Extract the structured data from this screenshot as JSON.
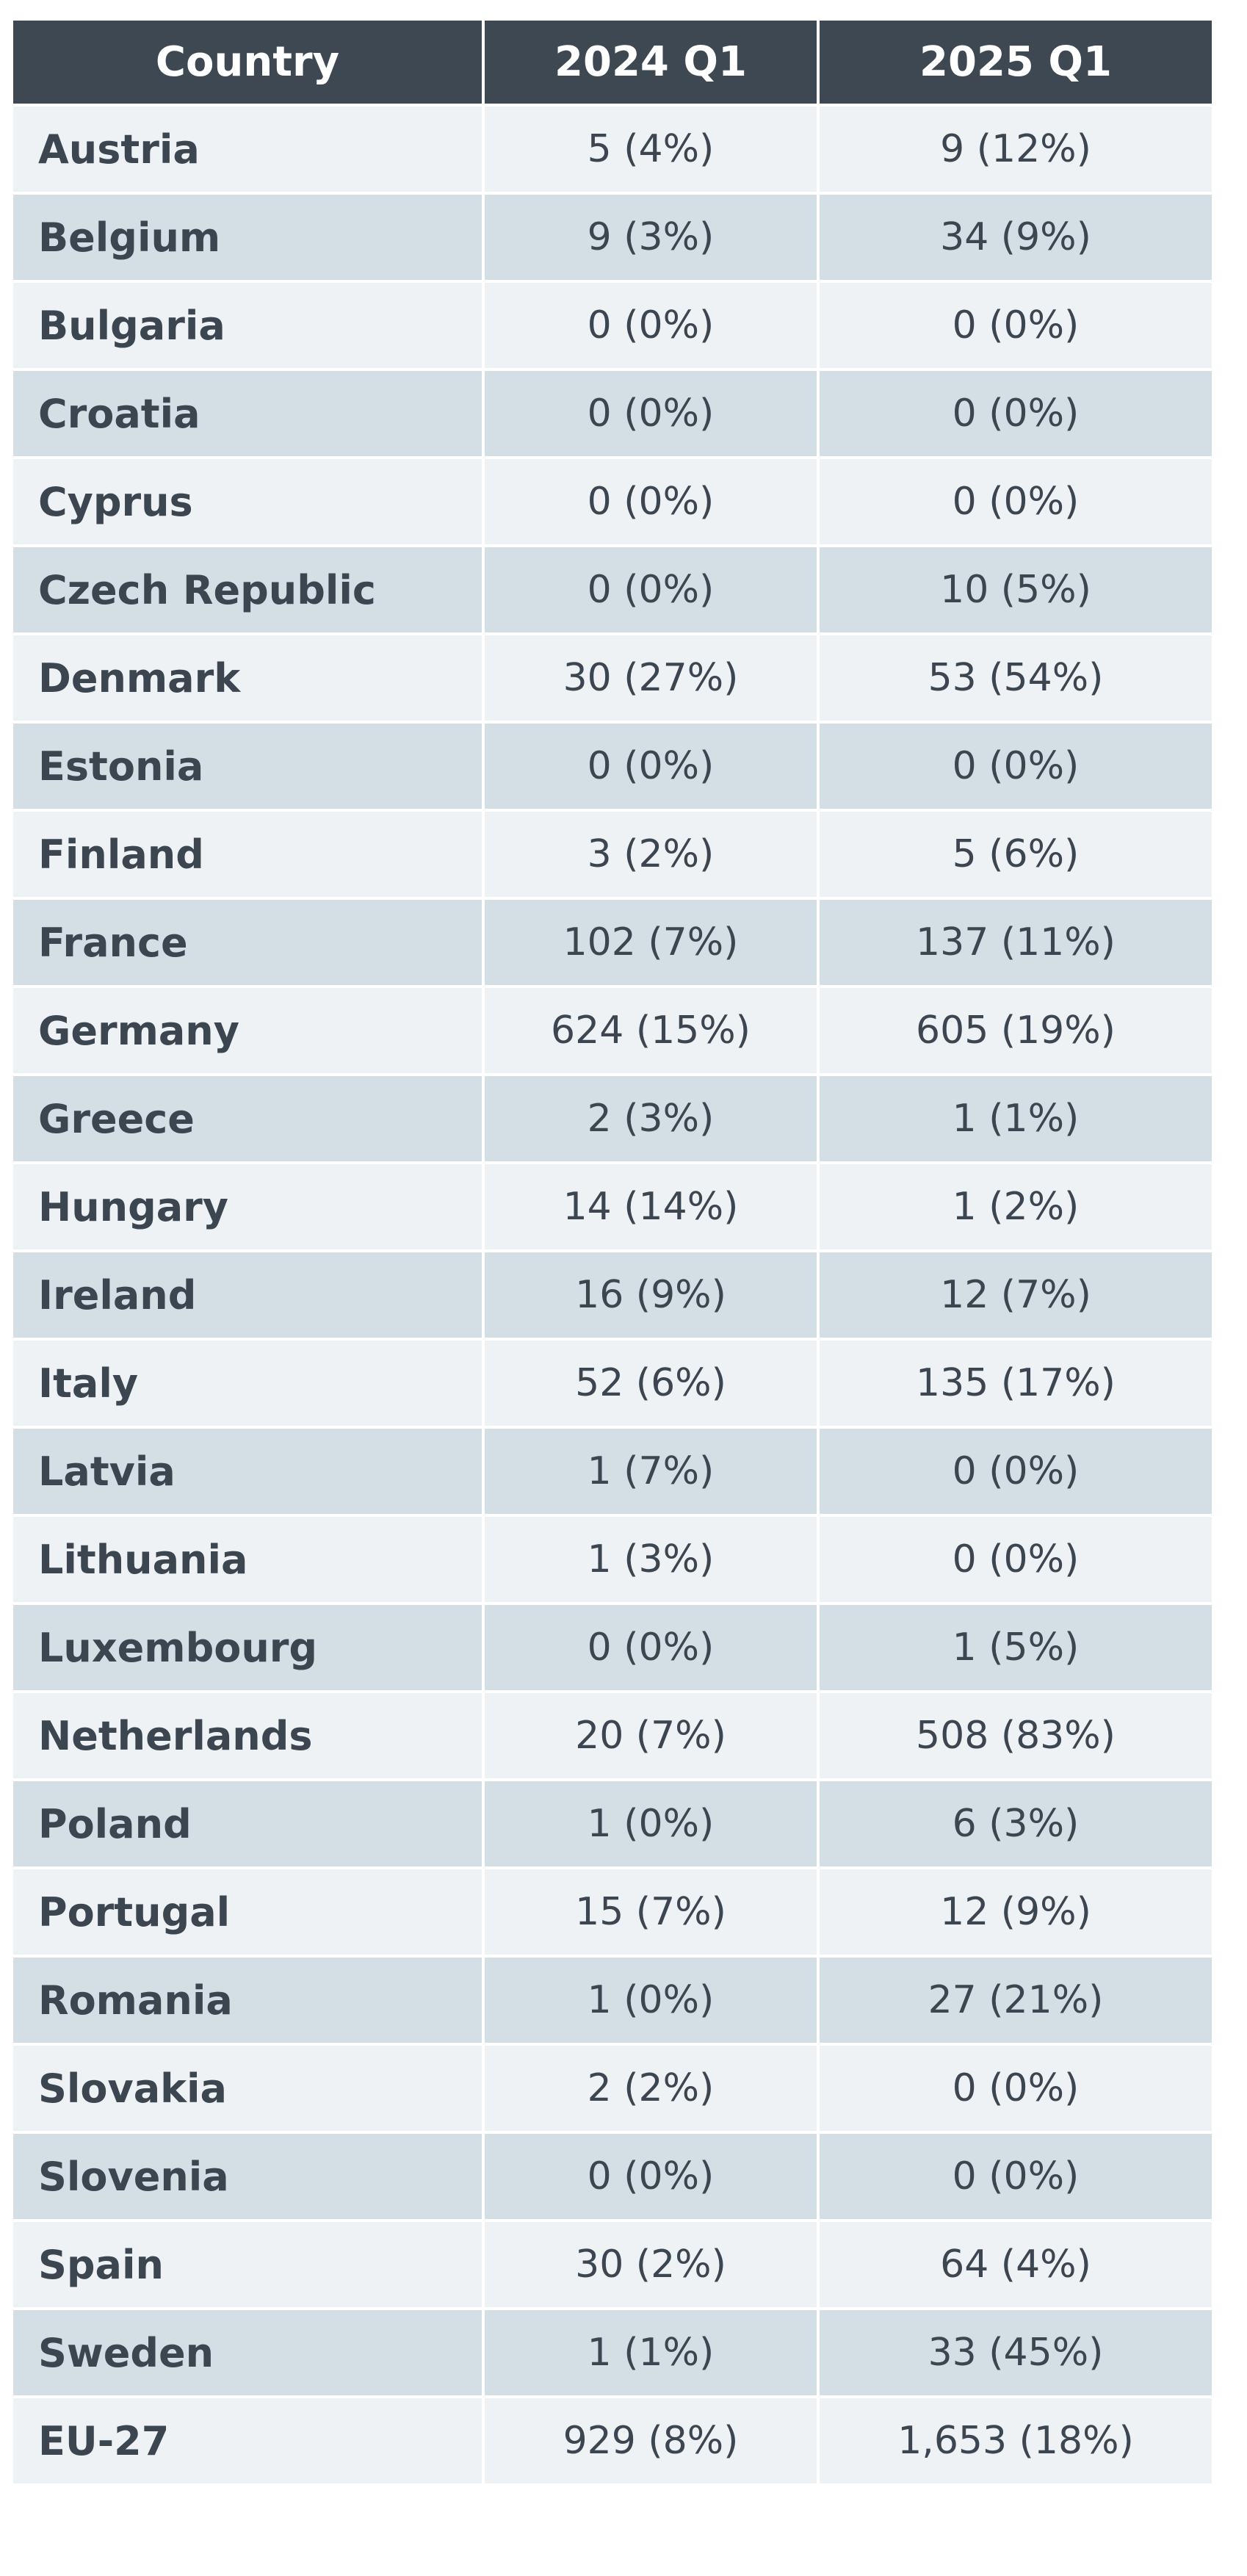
{
  "chart_data": {
    "type": "table",
    "columns": [
      "Country",
      "2024 Q1",
      "2025 Q1"
    ],
    "rows": [
      [
        "Austria",
        "5 (4%)",
        "9 (12%)"
      ],
      [
        "Belgium",
        "9 (3%)",
        "34 (9%)"
      ],
      [
        "Bulgaria",
        "0 (0%)",
        "0 (0%)"
      ],
      [
        "Croatia",
        "0 (0%)",
        "0 (0%)"
      ],
      [
        "Cyprus",
        "0 (0%)",
        "0 (0%)"
      ],
      [
        "Czech Republic",
        "0 (0%)",
        "10 (5%)"
      ],
      [
        "Denmark",
        "30 (27%)",
        "53 (54%)"
      ],
      [
        "Estonia",
        "0 (0%)",
        "0 (0%)"
      ],
      [
        "Finland",
        "3 (2%)",
        "5 (6%)"
      ],
      [
        "France",
        "102 (7%)",
        "137 (11%)"
      ],
      [
        "Germany",
        "624 (15%)",
        "605 (19%)"
      ],
      [
        "Greece",
        "2 (3%)",
        "1 (1%)"
      ],
      [
        "Hungary",
        "14 (14%)",
        "1 (2%)"
      ],
      [
        "Ireland",
        "16 (9%)",
        "12 (7%)"
      ],
      [
        "Italy",
        "52 (6%)",
        "135 (17%)"
      ],
      [
        "Latvia",
        "1 (7%)",
        "0 (0%)"
      ],
      [
        "Lithuania",
        "1 (3%)",
        "0 (0%)"
      ],
      [
        "Luxembourg",
        "0 (0%)",
        "1 (5%)"
      ],
      [
        "Netherlands",
        "20 (7%)",
        "508 (83%)"
      ],
      [
        "Poland",
        "1 (0%)",
        "6 (3%)"
      ],
      [
        "Portugal",
        "15 (7%)",
        "12 (9%)"
      ],
      [
        "Romania",
        "1 (0%)",
        "27 (21%)"
      ],
      [
        "Slovakia",
        "2 (2%)",
        "0 (0%)"
      ],
      [
        "Slovenia",
        "0 (0%)",
        "0 (0%)"
      ],
      [
        "Spain",
        "30 (2%)",
        "64 (4%)"
      ],
      [
        "Sweden",
        "1 (1%)",
        "33 (45%)"
      ],
      [
        "EU-27",
        "929 (8%)",
        "1,653 (18%)"
      ]
    ]
  },
  "colors": {
    "header_background": "#3d4852",
    "header_text": "#ffffff",
    "row_light": "#eef2f5",
    "row_dark": "#d3dfe5",
    "body_text": "#3b4650",
    "cell_border": "#ffffff"
  }
}
